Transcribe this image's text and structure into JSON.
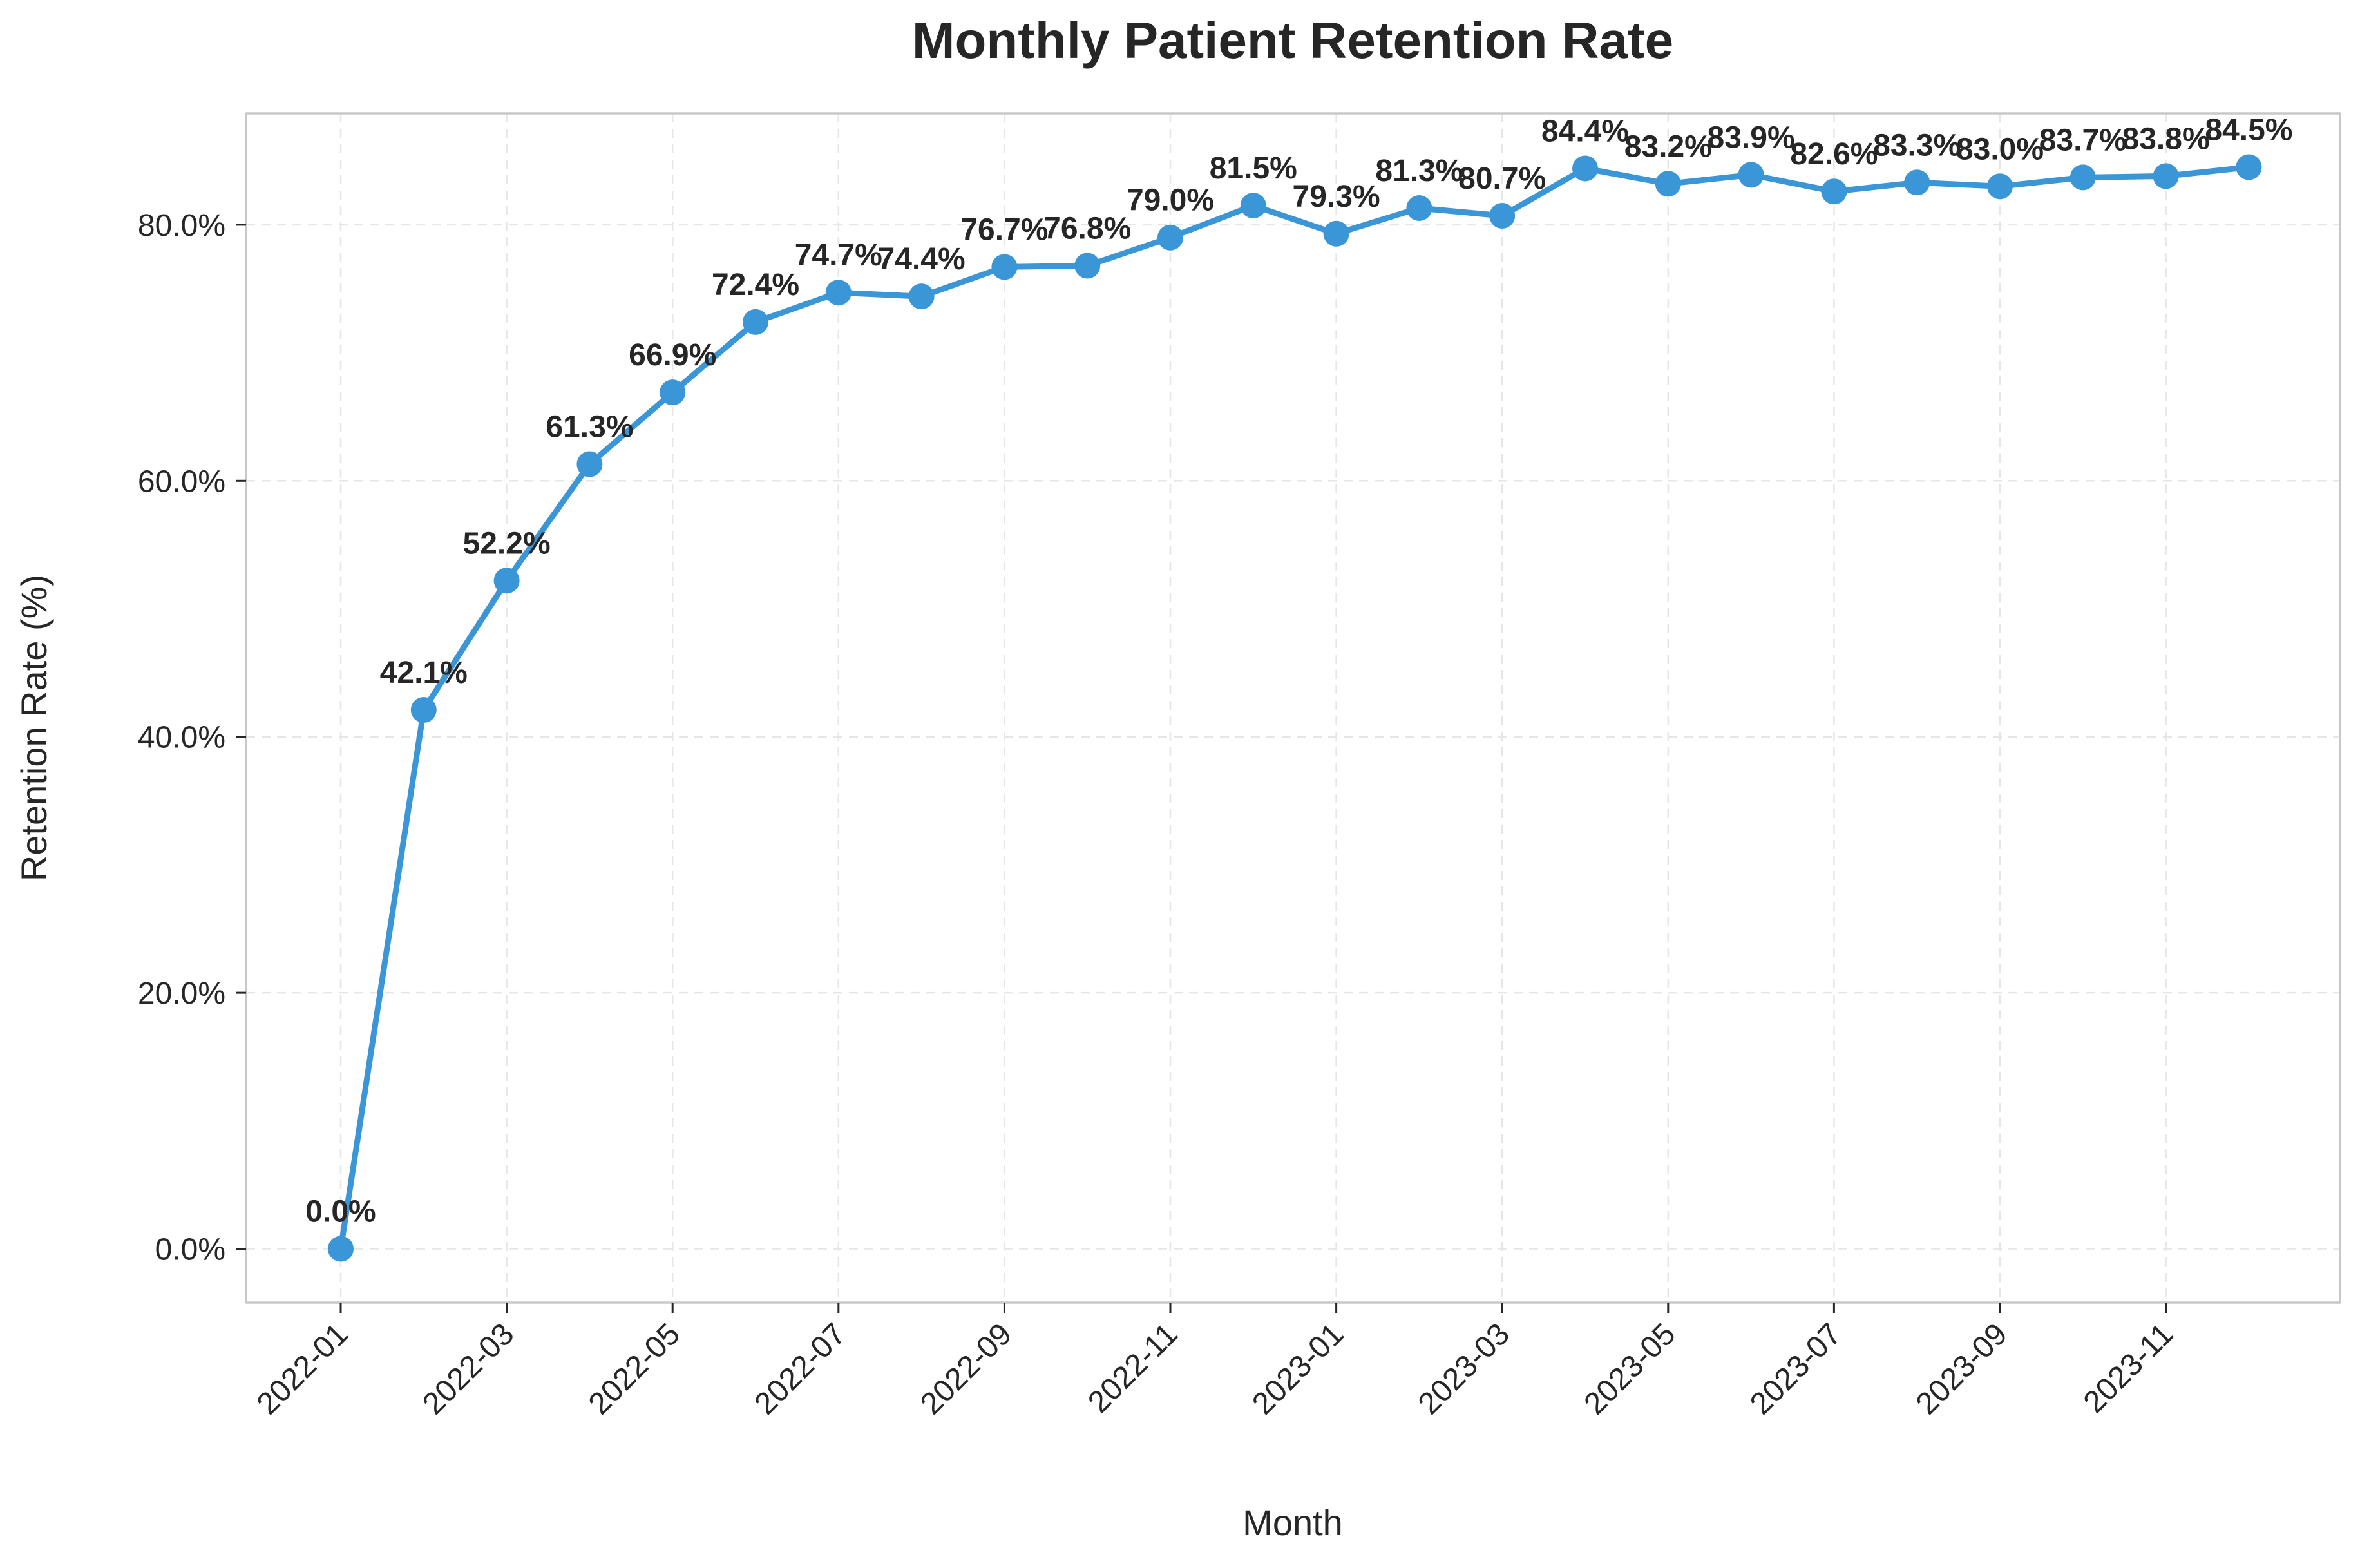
{
  "chart_data": {
    "type": "line",
    "title": "Monthly Patient Retention Rate",
    "xlabel": "Month",
    "ylabel": "Retention Rate (%)",
    "ylim": [
      -4.2,
      88.7
    ],
    "yticks": [
      0,
      20,
      40,
      60,
      80
    ],
    "ytick_labels": [
      "0.0%",
      "20.0%",
      "40.0%",
      "60.0%",
      "80.0%"
    ],
    "xtick_labels": [
      "2022-01",
      "2022-03",
      "2022-05",
      "2022-07",
      "2022-09",
      "2022-11",
      "2023-01",
      "2023-03",
      "2023-05",
      "2023-07",
      "2023-09",
      "2023-11"
    ],
    "grid": true,
    "color": "#3a96d6",
    "series": [
      {
        "x": [
          "2022-01",
          "2022-02",
          "2022-03",
          "2022-04",
          "2022-05",
          "2022-06",
          "2022-07",
          "2022-08",
          "2022-09",
          "2022-10",
          "2022-11",
          "2022-12",
          "2023-01",
          "2023-02",
          "2023-03",
          "2023-04",
          "2023-05",
          "2023-06",
          "2023-07",
          "2023-08",
          "2023-09",
          "2023-10",
          "2023-11",
          "2023-12"
        ],
        "values": [
          0.0,
          42.1,
          52.2,
          61.3,
          66.9,
          72.4,
          74.7,
          74.4,
          76.7,
          76.8,
          79.0,
          81.5,
          79.3,
          81.3,
          80.7,
          84.4,
          83.2,
          83.9,
          82.6,
          83.3,
          83.0,
          83.7,
          83.8,
          84.5
        ],
        "labels": [
          "0.0%",
          "42.1%",
          "52.2%",
          "61.3%",
          "66.9%",
          "72.4%",
          "74.7%",
          "74.4%",
          "76.7%",
          "76.8%",
          "79.0%",
          "81.5%",
          "79.3%",
          "81.3%",
          "80.7%",
          "84.4%",
          "83.2%",
          "83.9%",
          "82.6%",
          "83.3%",
          "83.0%",
          "83.7%",
          "83.8%",
          "84.5%"
        ]
      }
    ]
  }
}
